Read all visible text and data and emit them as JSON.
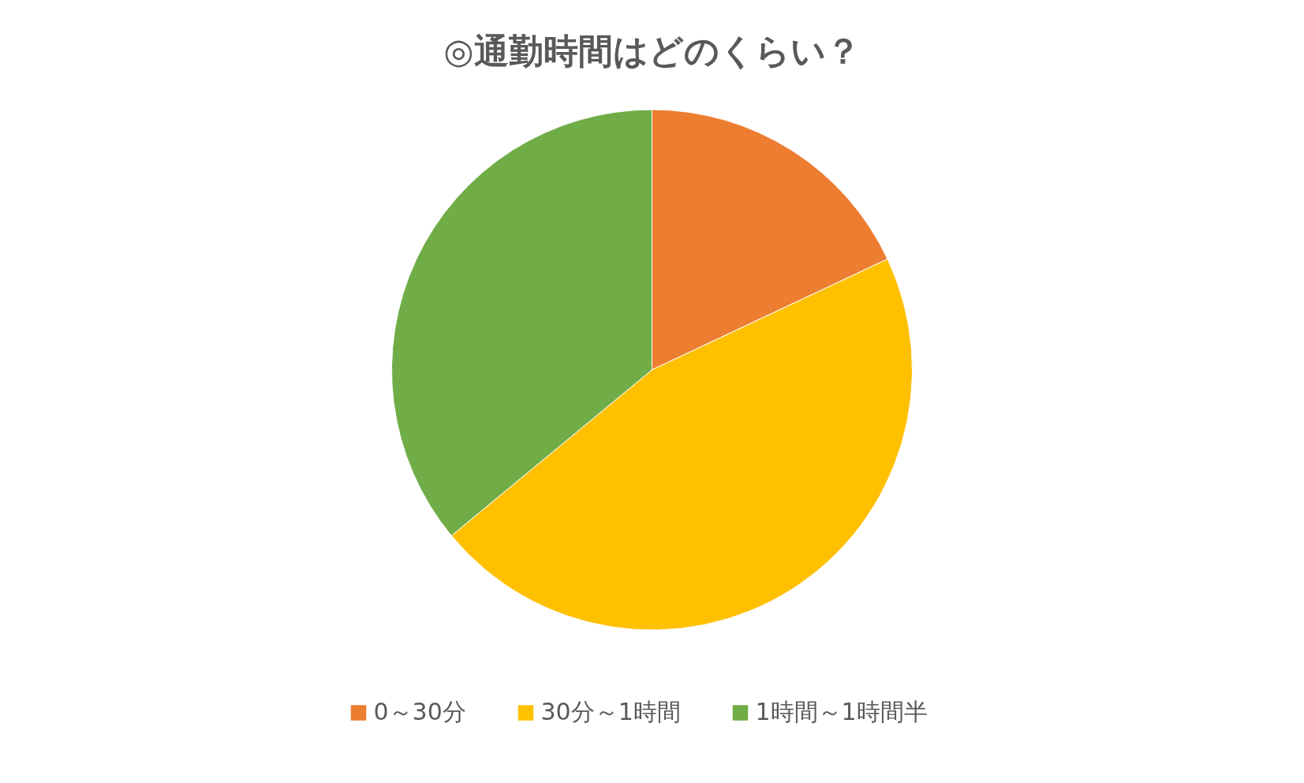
{
  "chart_data": {
    "type": "pie",
    "title": "◎通勤時間はどのくらい？",
    "categories": [
      "0～30分",
      "30分～1時間",
      "1時間～1時間半"
    ],
    "values": [
      18,
      46,
      36
    ],
    "colors": [
      "#ed7d31",
      "#ffc000",
      "#70ad47"
    ],
    "legend": "bottom"
  }
}
